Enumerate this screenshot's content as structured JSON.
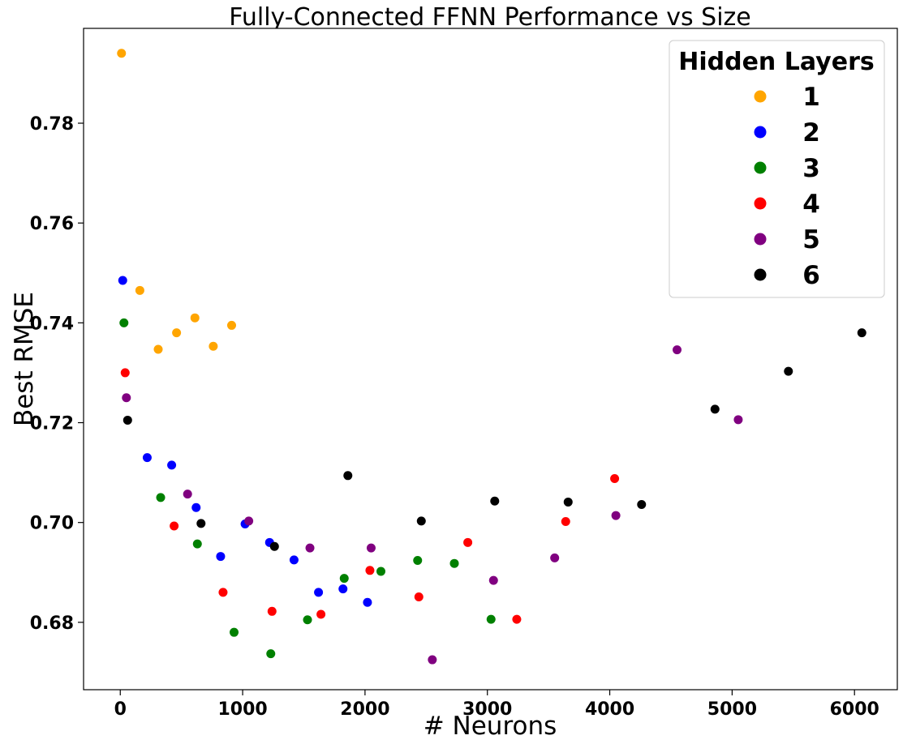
{
  "chart_data": {
    "type": "scatter",
    "title": "Fully-Connected FFNN Performance vs Size",
    "xlabel": "# Neurons",
    "ylabel": "Best RMSE",
    "xlim": [
      -300,
      6350
    ],
    "ylim": [
      0.6665,
      0.799
    ],
    "xticks": [
      0,
      1000,
      2000,
      3000,
      4000,
      5000,
      6000
    ],
    "yticks": [
      0.68,
      0.7,
      0.72,
      0.74,
      0.76,
      0.78
    ],
    "xtick_labels": [
      "0",
      "1000",
      "2000",
      "3000",
      "4000",
      "5000",
      "6000"
    ],
    "ytick_labels": [
      "0.68",
      "0.70",
      "0.72",
      "0.74",
      "0.76",
      "0.78"
    ],
    "grid": false,
    "legend": {
      "title": "Hidden Layers",
      "placement": "top-right"
    },
    "series": [
      {
        "name": "1",
        "color": "#ffa500",
        "points": [
          [
            10,
            0.794
          ],
          [
            160,
            0.7465
          ],
          [
            310,
            0.7347
          ],
          [
            460,
            0.738
          ],
          [
            610,
            0.741
          ],
          [
            760,
            0.7353
          ],
          [
            910,
            0.7395
          ]
        ]
      },
      {
        "name": "2",
        "color": "#0000ff",
        "points": [
          [
            20,
            0.7485
          ],
          [
            220,
            0.713
          ],
          [
            420,
            0.7115
          ],
          [
            620,
            0.703
          ],
          [
            820,
            0.6932
          ],
          [
            1020,
            0.6997
          ],
          [
            1220,
            0.696
          ],
          [
            1420,
            0.6925
          ],
          [
            1620,
            0.686
          ],
          [
            1820,
            0.6867
          ],
          [
            2020,
            0.684
          ]
        ]
      },
      {
        "name": "3",
        "color": "#008000",
        "points": [
          [
            30,
            0.74
          ],
          [
            330,
            0.705
          ],
          [
            630,
            0.6957
          ],
          [
            930,
            0.678
          ],
          [
            1230,
            0.6737
          ],
          [
            1530,
            0.6805
          ],
          [
            1830,
            0.6888
          ],
          [
            2130,
            0.6902
          ],
          [
            2430,
            0.6924
          ],
          [
            2730,
            0.6918
          ],
          [
            3030,
            0.6806
          ]
        ]
      },
      {
        "name": "4",
        "color": "#ff0000",
        "points": [
          [
            40,
            0.73
          ],
          [
            440,
            0.6993
          ],
          [
            840,
            0.686
          ],
          [
            1240,
            0.6822
          ],
          [
            1640,
            0.6816
          ],
          [
            2040,
            0.6904
          ],
          [
            2440,
            0.6851
          ],
          [
            2840,
            0.696
          ],
          [
            3240,
            0.6806
          ],
          [
            3640,
            0.7002
          ],
          [
            4040,
            0.7088
          ]
        ]
      },
      {
        "name": "5",
        "color": "#800080",
        "points": [
          [
            50,
            0.725
          ],
          [
            550,
            0.7057
          ],
          [
            1050,
            0.7003
          ],
          [
            1550,
            0.6949
          ],
          [
            2050,
            0.6949
          ],
          [
            2550,
            0.6725
          ],
          [
            3050,
            0.6884
          ],
          [
            3550,
            0.6929
          ],
          [
            4050,
            0.7014
          ],
          [
            4550,
            0.7346
          ],
          [
            5050,
            0.7206
          ]
        ]
      },
      {
        "name": "6",
        "color": "#000000",
        "points": [
          [
            60,
            0.7205
          ],
          [
            660,
            0.6998
          ],
          [
            1260,
            0.6952
          ],
          [
            1860,
            0.7094
          ],
          [
            2460,
            0.7003
          ],
          [
            3060,
            0.7043
          ],
          [
            3660,
            0.7041
          ],
          [
            4260,
            0.7036
          ],
          [
            4860,
            0.7227
          ],
          [
            5460,
            0.7303
          ],
          [
            6060,
            0.738
          ]
        ]
      }
    ]
  }
}
